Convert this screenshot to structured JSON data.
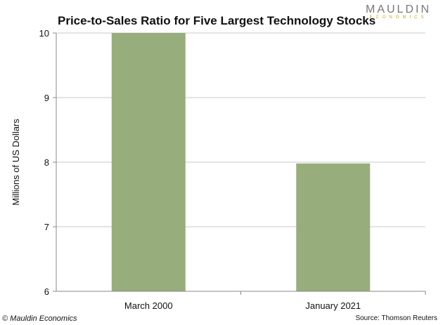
{
  "chart_data": {
    "type": "bar",
    "title": "Price-to-Sales Ratio for Five Largest Technology Stocks",
    "categories": [
      "March 2000",
      "January 2021"
    ],
    "values": [
      10,
      7.98
    ],
    "xlabel": "",
    "ylabel": "Millions of US Dollars",
    "ylim": [
      6,
      10
    ],
    "yticks": [
      6,
      7,
      8,
      9,
      10
    ],
    "grid": true,
    "bar_color": "#97ae7c"
  },
  "logo": {
    "line1": "MAULDIN",
    "line2": "ECONOMICS"
  },
  "footer": {
    "copyright": "© Mauldin Economics",
    "source": "Source: Thomson Reuters"
  }
}
